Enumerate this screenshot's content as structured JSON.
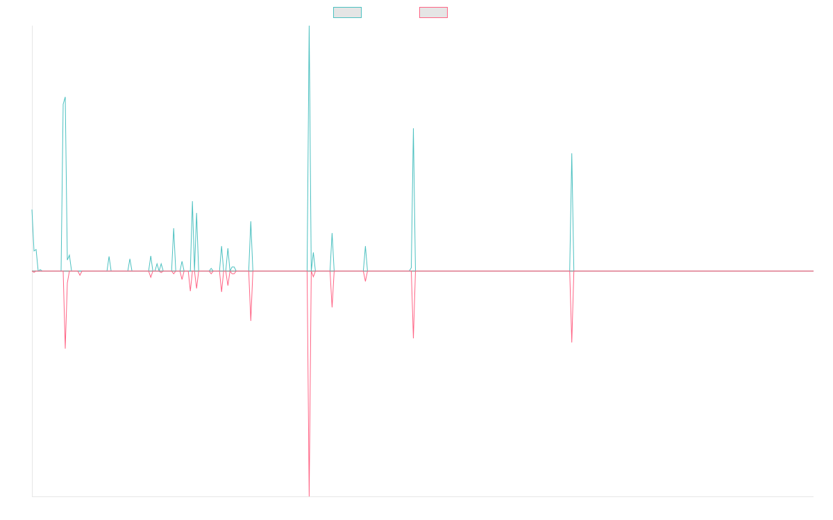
{
  "chart_data": {
    "type": "line",
    "title": "",
    "xlabel": "",
    "ylabel": "",
    "xlim": [
      0,
      375
    ],
    "ylim": [
      -91.8,
      100
    ],
    "grid": false,
    "legend_placement": "top",
    "zero_line_color": "#999999",
    "series": [
      {
        "name": "",
        "color": "#4bc0c0",
        "points": [
          [
            0,
            25.1
          ],
          [
            1,
            8.2
          ],
          [
            2,
            8.8
          ],
          [
            4,
            0.6
          ],
          [
            15,
            68
          ],
          [
            16,
            71
          ],
          [
            17,
            4.5
          ],
          [
            18,
            6.5
          ],
          [
            37,
            6
          ],
          [
            47,
            5
          ],
          [
            57,
            6.2
          ],
          [
            60,
            3
          ],
          [
            62,
            3
          ],
          [
            68,
            17.5
          ],
          [
            72,
            4
          ],
          [
            77,
            28.5
          ],
          [
            79,
            23.7
          ],
          [
            86,
            1.1
          ],
          [
            91,
            10.2
          ],
          [
            94,
            9.3
          ],
          [
            96,
            1.7
          ],
          [
            97,
            1.7
          ],
          [
            105,
            20.3
          ],
          [
            133,
            100
          ],
          [
            135,
            7.6
          ],
          [
            144,
            15.5
          ],
          [
            160,
            10.2
          ],
          [
            182,
            1.4
          ],
          [
            183,
            58.2
          ],
          [
            259,
            48
          ]
        ]
      },
      {
        "name": "",
        "color": "#ff6384",
        "points": [
          [
            1,
            -0.5
          ],
          [
            16,
            -31.6
          ],
          [
            17,
            -4.8
          ],
          [
            23,
            -1.7
          ],
          [
            57,
            -2.5
          ],
          [
            62,
            -0.6
          ],
          [
            68,
            -1.1
          ],
          [
            72,
            -3.4
          ],
          [
            76,
            -8.2
          ],
          [
            79,
            -7.1
          ],
          [
            86,
            -1.1
          ],
          [
            91,
            -8.5
          ],
          [
            94,
            -5.9
          ],
          [
            96,
            -1.1
          ],
          [
            97,
            -1.1
          ],
          [
            105,
            -20.3
          ],
          [
            133,
            -91.8
          ],
          [
            135,
            -2.3
          ],
          [
            144,
            -14.8
          ],
          [
            160,
            -4.2
          ],
          [
            183,
            -27.4
          ],
          [
            259,
            -29.1
          ]
        ]
      }
    ]
  }
}
